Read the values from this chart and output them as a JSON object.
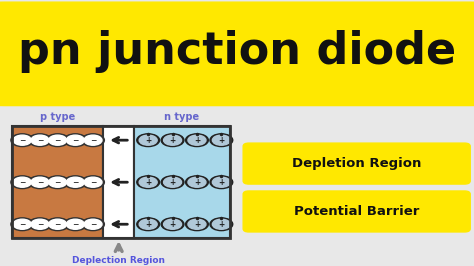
{
  "bg_color": "#e8e8e8",
  "top_bg_color": "#FFE800",
  "title_text": "pn junction diode",
  "title_color": "#111111",
  "title_fontsize": 32,
  "p_type_color": "#C87941",
  "n_type_color": "#A8D8EA",
  "depletion_color": "#FFFFFF",
  "p_label": "p type",
  "n_label": "n type",
  "depletion_label": "Deplection Region",
  "depletion_label_color": "#5555DD",
  "box1_text": "Depletion Region",
  "box2_text": "Potential Barrier",
  "box_bg_color": "#FFE800",
  "box_text_color": "#111111",
  "border_color": "#333333",
  "arrow_color": "#222222",
  "hole_fill": "#FFFFFF",
  "hole_border": "#333333",
  "electron_fill": "#B0C8D8",
  "electron_border": "#222222",
  "label_color": "#6666CC"
}
